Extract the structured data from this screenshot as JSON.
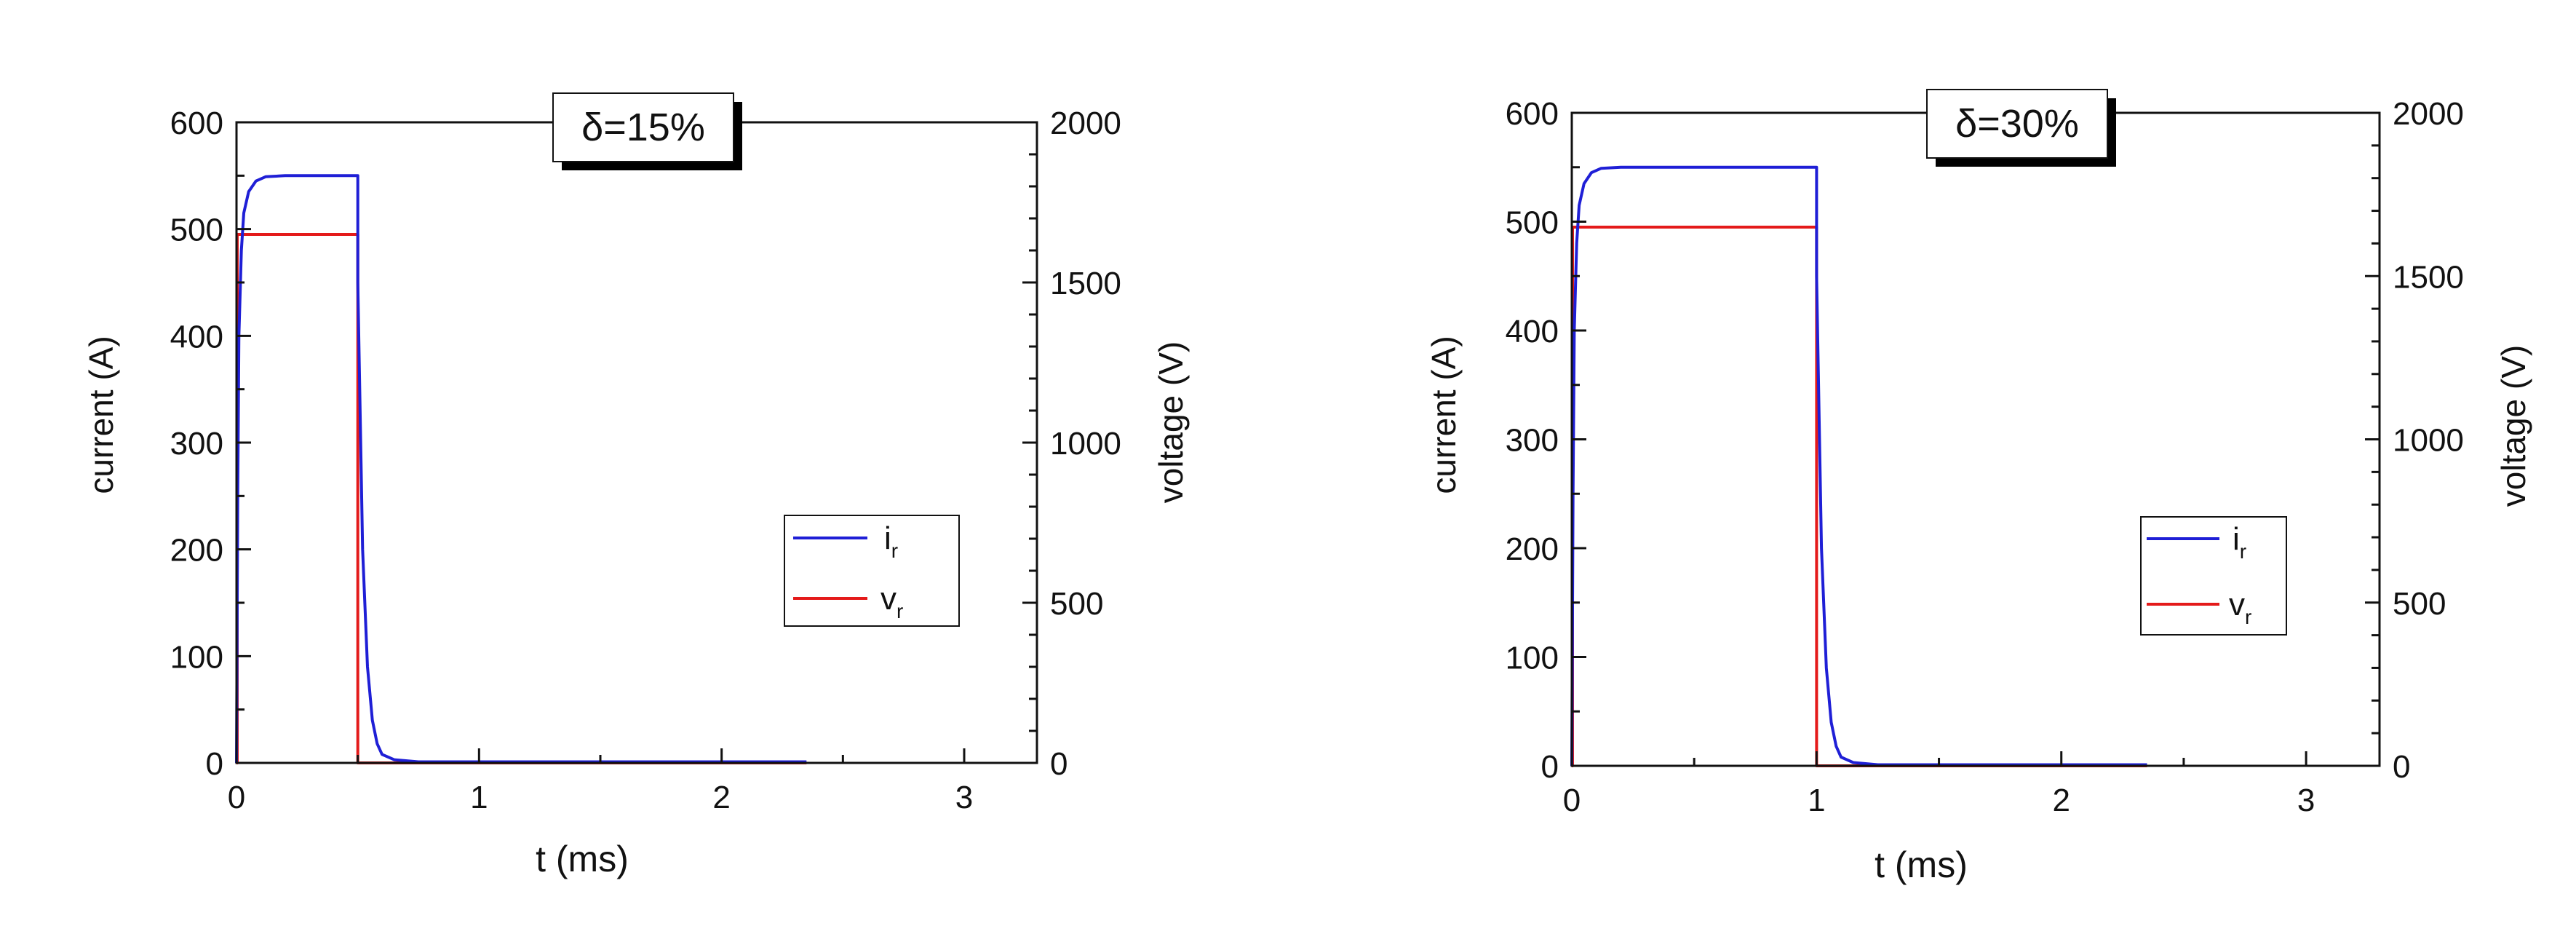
{
  "chart_data": [
    {
      "type": "line",
      "title": "δ=15%",
      "xlabel": "t (ms)",
      "ylabel": "current (A)",
      "y2label": "voltage (V)",
      "xlim": [
        0,
        3.3
      ],
      "ylim": [
        0,
        600
      ],
      "y2lim": [
        0,
        2000
      ],
      "xticks": [
        "0",
        "1",
        "2",
        "3"
      ],
      "yticks": [
        "0",
        "100",
        "200",
        "300",
        "400",
        "500",
        "600"
      ],
      "y2ticks": [
        "0",
        "500",
        "1000",
        "1500",
        "2000"
      ],
      "legend": {
        "placement": "right-middle",
        "entries": [
          {
            "name": "i",
            "sub": "r",
            "color": "#1f1fd6"
          },
          {
            "name": "v",
            "sub": "r",
            "color": "#e41a1a"
          }
        ]
      },
      "series": [
        {
          "name": "ir",
          "axis": "left",
          "color": "#1f1fd6",
          "x": [
            0,
            0.005,
            0.01,
            0.02,
            0.03,
            0.05,
            0.08,
            0.12,
            0.2,
            0.5,
            0.5,
            0.52,
            0.54,
            0.56,
            0.58,
            0.6,
            0.65,
            0.75,
            2.35
          ],
          "y": [
            0,
            250,
            400,
            480,
            515,
            535,
            545,
            549,
            550,
            550,
            450,
            200,
            90,
            40,
            18,
            8,
            3,
            1,
            1
          ]
        },
        {
          "name": "vr",
          "axis": "right",
          "color": "#e41a1a",
          "x": [
            0,
            0.003,
            0.003,
            0.5,
            0.5,
            2.35
          ],
          "y": [
            0,
            0,
            1650,
            1650,
            0,
            0
          ]
        }
      ]
    },
    {
      "type": "line",
      "title": "δ=30%",
      "xlabel": "t (ms)",
      "ylabel": "current (A)",
      "y2label": "voltage (V)",
      "xlim": [
        0,
        3.3
      ],
      "ylim": [
        0,
        600
      ],
      "y2lim": [
        0,
        2000
      ],
      "xticks": [
        "0",
        "1",
        "2",
        "3"
      ],
      "yticks": [
        "0",
        "100",
        "200",
        "300",
        "400",
        "500",
        "600"
      ],
      "y2ticks": [
        "0",
        "500",
        "1000",
        "1500",
        "2000"
      ],
      "legend": {
        "placement": "right-middle",
        "entries": [
          {
            "name": "i",
            "sub": "r",
            "color": "#1f1fd6"
          },
          {
            "name": "v",
            "sub": "r",
            "color": "#e41a1a"
          }
        ]
      },
      "series": [
        {
          "name": "ir",
          "axis": "left",
          "color": "#1f1fd6",
          "x": [
            0,
            0.005,
            0.01,
            0.02,
            0.03,
            0.05,
            0.08,
            0.12,
            0.2,
            1.0,
            1.0,
            1.02,
            1.04,
            1.06,
            1.08,
            1.1,
            1.15,
            1.25,
            2.35
          ],
          "y": [
            0,
            250,
            400,
            480,
            515,
            535,
            545,
            549,
            550,
            550,
            450,
            200,
            90,
            40,
            18,
            8,
            3,
            1,
            1
          ]
        },
        {
          "name": "vr",
          "axis": "right",
          "color": "#e41a1a",
          "x": [
            0,
            0.003,
            0.003,
            1.0,
            1.0,
            2.35
          ],
          "y": [
            0,
            0,
            1650,
            1650,
            0,
            0
          ]
        }
      ]
    }
  ]
}
